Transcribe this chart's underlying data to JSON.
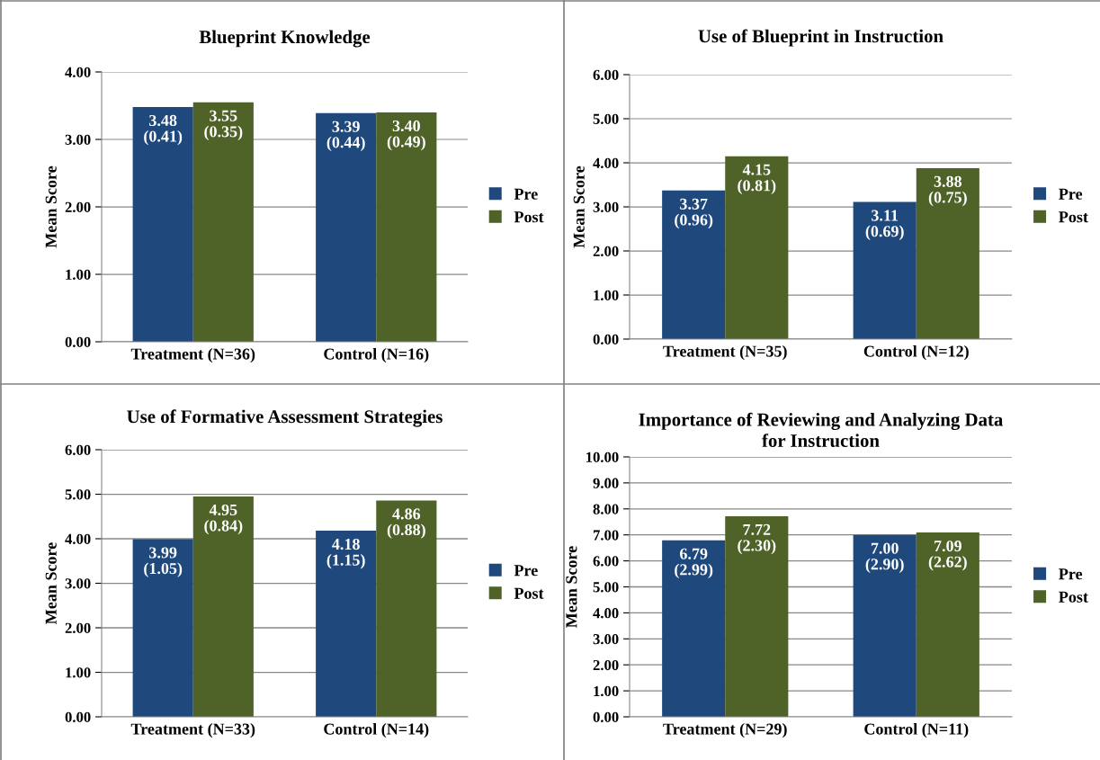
{
  "chart_data": [
    {
      "type": "bar",
      "title": "Blueprint Knowledge",
      "ylabel": "Mean Score",
      "categories": [
        "Treatment (N=36)",
        "Control (N=16)"
      ],
      "series": [
        {
          "name": "Pre",
          "color": "#1f497d",
          "values": [
            3.48,
            3.39
          ],
          "value_labels": [
            "3.48\n(0.41)",
            "3.39\n(0.44)"
          ]
        },
        {
          "name": "Post",
          "color": "#4f6228",
          "values": [
            3.55,
            3.4
          ],
          "value_labels": [
            "3.55\n(0.35)",
            "3.40\n(0.49)"
          ]
        }
      ],
      "ylim": [
        0,
        4
      ],
      "yticks": [
        {
          "value": 0,
          "label": "0.00"
        },
        {
          "value": 1,
          "label": "1.00"
        },
        {
          "value": 2,
          "label": "2.00"
        },
        {
          "value": 3,
          "label": "3.00"
        },
        {
          "value": 4,
          "label": "4.00"
        }
      ],
      "grid": "y",
      "legend": "right"
    },
    {
      "type": "bar",
      "title": "Use of Blueprint in Instruction",
      "ylabel": "Mean Score",
      "categories": [
        "Treatment (N=35)",
        "Control (N=12)"
      ],
      "series": [
        {
          "name": "Pre",
          "color": "#1f497d",
          "values": [
            3.37,
            3.11
          ],
          "value_labels": [
            "3.37\n(0.96)",
            "3.11\n(0.69)"
          ]
        },
        {
          "name": "Post",
          "color": "#4f6228",
          "values": [
            4.15,
            3.88
          ],
          "value_labels": [
            "4.15\n(0.81)",
            "3.88\n(0.75)"
          ]
        }
      ],
      "ylim": [
        0,
        6
      ],
      "yticks": [
        {
          "value": 0,
          "label": "0.00"
        },
        {
          "value": 1,
          "label": "1.00"
        },
        {
          "value": 2,
          "label": "2.00"
        },
        {
          "value": 3,
          "label": "3.00"
        },
        {
          "value": 4,
          "label": "4.00"
        },
        {
          "value": 5,
          "label": "5.00"
        },
        {
          "value": 6,
          "label": "6.00"
        }
      ],
      "grid": "y",
      "legend": "right"
    },
    {
      "type": "bar",
      "title": "Use of Formative Assessment Strategies",
      "ylabel": "Mean Score",
      "categories": [
        "Treatment (N=33)",
        "Control (N=14)"
      ],
      "series": [
        {
          "name": "Pre",
          "color": "#1f497d",
          "values": [
            3.99,
            4.18
          ],
          "value_labels": [
            "3.99\n(1.05)",
            "4.18\n(1.15)"
          ]
        },
        {
          "name": "Post",
          "color": "#4f6228",
          "values": [
            4.95,
            4.86
          ],
          "value_labels": [
            "4.95\n(0.84)",
            "4.86\n(0.88)"
          ]
        }
      ],
      "ylim": [
        0,
        6
      ],
      "yticks": [
        {
          "value": 0,
          "label": "0.00"
        },
        {
          "value": 1,
          "label": "1.00"
        },
        {
          "value": 2,
          "label": "2.00"
        },
        {
          "value": 3,
          "label": "3.00"
        },
        {
          "value": 4,
          "label": "4.00"
        },
        {
          "value": 5,
          "label": "5.00"
        },
        {
          "value": 6,
          "label": "6.00"
        }
      ],
      "grid": "y",
      "legend": "right"
    },
    {
      "type": "bar",
      "title": "Importance of Reviewing and Analyzing Data\nfor Instruction",
      "ylabel": "Mean Score",
      "categories": [
        "Treatment (N=29)",
        "Control (N=11)"
      ],
      "series": [
        {
          "name": "Pre",
          "color": "#1f497d",
          "values": [
            6.79,
            7.0
          ],
          "value_labels": [
            "6.79\n(2.99)",
            "7.00\n(2.90)"
          ]
        },
        {
          "name": "Post",
          "color": "#4f6228",
          "values": [
            7.72,
            7.09
          ],
          "value_labels": [
            "7.72\n(2.30)",
            "7.09\n(2.62)"
          ]
        }
      ],
      "ylim": [
        0,
        10
      ],
      "yticks": [
        {
          "value": 0,
          "label": "0.00"
        },
        {
          "value": 1,
          "label": "1.00"
        },
        {
          "value": 2,
          "label": "2.00"
        },
        {
          "value": 3,
          "label": "3.00"
        },
        {
          "value": 4,
          "label": "4.00"
        },
        {
          "value": 5,
          "label": "5.00"
        },
        {
          "value": 6,
          "label": "6.00"
        },
        {
          "value": 7,
          "label": "7.00"
        },
        {
          "value": 8,
          "label": "8.00"
        },
        {
          "value": 9,
          "label": "9.00"
        },
        {
          "value": 10,
          "label": "10.00"
        }
      ],
      "grid": "y",
      "legend": "right"
    }
  ]
}
